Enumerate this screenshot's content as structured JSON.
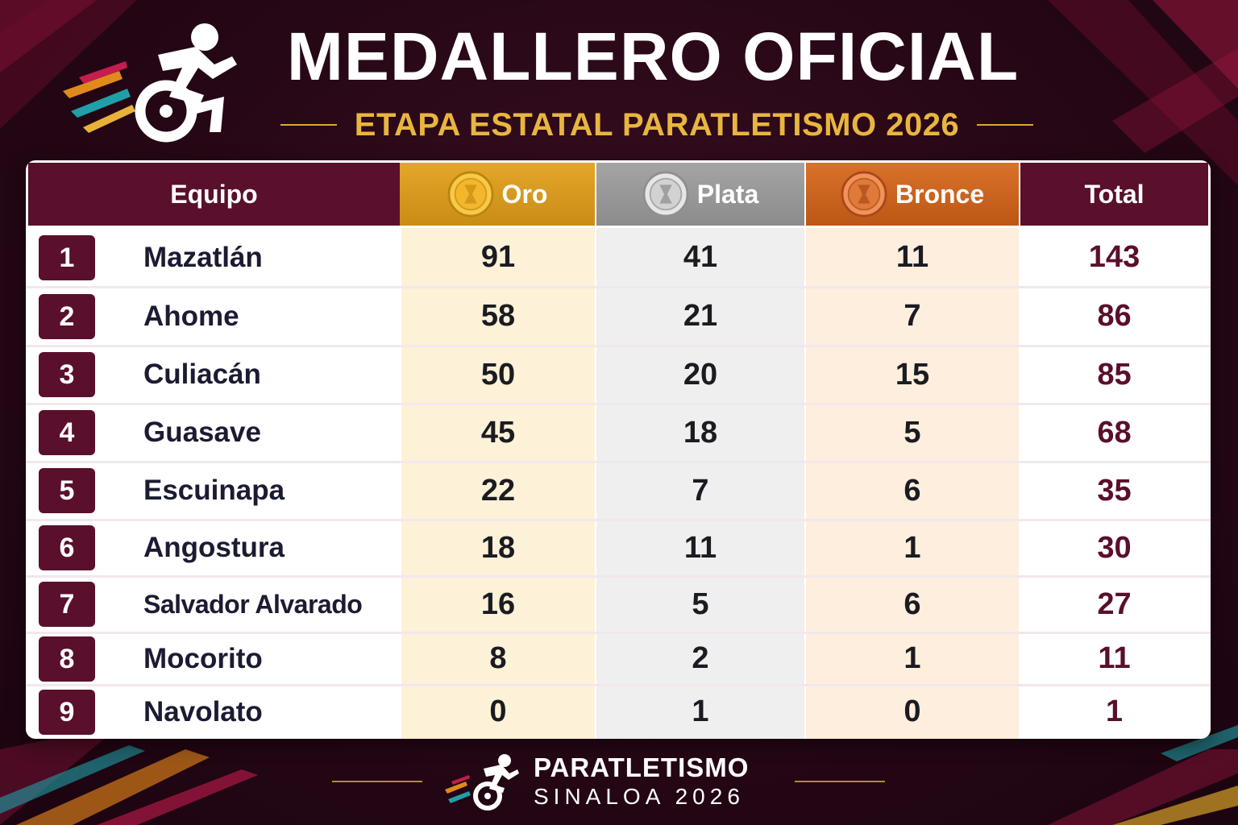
{
  "header": {
    "title": "MEDALLERO OFICIAL",
    "subtitle": "ETAPA ESTATAL PARATLETISMO 2026",
    "logo_icon": "wheelchair-athlete-icon"
  },
  "table": {
    "columns": {
      "team": "Equipo",
      "gold": "Oro",
      "silver": "Plata",
      "bronze": "Bronce",
      "total": "Total"
    },
    "rows": [
      {
        "rank": "1",
        "team": "Mazatlán",
        "gold": "91",
        "silver": "41",
        "bronze": "11",
        "total": "143"
      },
      {
        "rank": "2",
        "team": "Ahome",
        "gold": "58",
        "silver": "21",
        "bronze": "7",
        "total": "86"
      },
      {
        "rank": "3",
        "team": "Culiacán",
        "gold": "50",
        "silver": "20",
        "bronze": "15",
        "total": "85"
      },
      {
        "rank": "4",
        "team": "Guasave",
        "gold": "45",
        "silver": "18",
        "bronze": "5",
        "total": "68"
      },
      {
        "rank": "5",
        "team": "Escuinapa",
        "gold": "22",
        "silver": "7",
        "bronze": "6",
        "total": "35"
      },
      {
        "rank": "6",
        "team": "Angostura",
        "gold": "18",
        "silver": "11",
        "bronze": "1",
        "total": "30"
      },
      {
        "rank": "7",
        "team": "Salvador Alvarado",
        "gold": "16",
        "silver": "5",
        "bronze": "6",
        "total": "27"
      },
      {
        "rank": "8",
        "team": "Mocorito",
        "gold": "8",
        "silver": "2",
        "bronze": "1",
        "total": "11"
      },
      {
        "rank": "9",
        "team": "Navolato",
        "gold": "0",
        "silver": "1",
        "bronze": "0",
        "total": "1"
      }
    ]
  },
  "footer": {
    "line1": "PARATLETISMO",
    "line2": "SINALOA 2026",
    "logo_icon": "wheelchair-athlete-icon"
  },
  "colors": {
    "background": "#260716",
    "maroon": "#5a0f2c",
    "gold": "#e4a72a",
    "silver": "#9a9a9a",
    "bronze": "#d9712a",
    "subtitle": "#e8b63e"
  }
}
